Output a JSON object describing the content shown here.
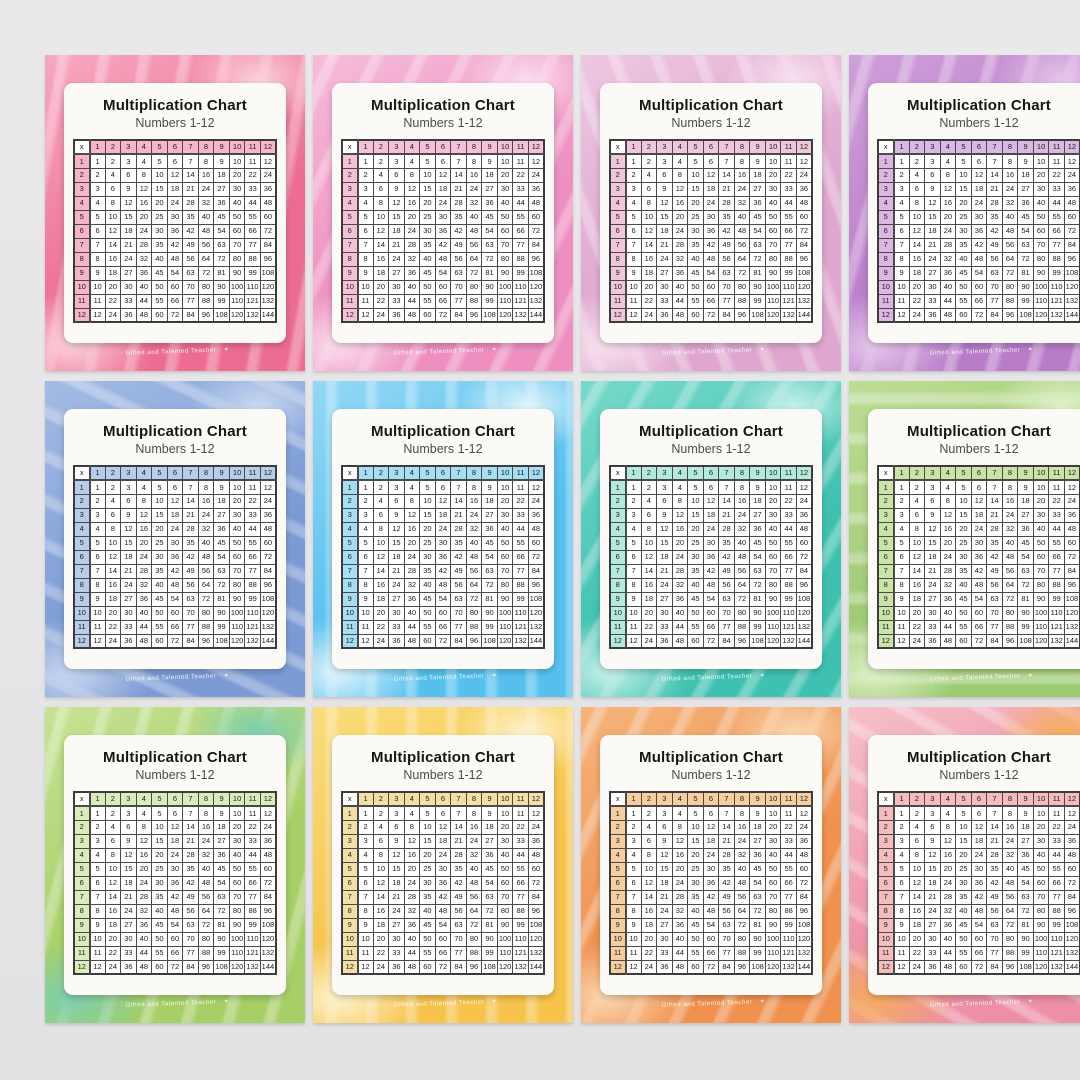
{
  "poster": {
    "title": "Multiplication Chart",
    "subtitle": "Numbers 1-12",
    "watermark": "· Gifted and Talented Teacher · ✶",
    "table": {
      "corner": "x",
      "col_headers": [
        "1",
        "2",
        "3",
        "4",
        "5",
        "6",
        "7",
        "8",
        "9",
        "10",
        "11",
        "12"
      ],
      "rows": [
        [
          1,
          1,
          2,
          3,
          4,
          5,
          6,
          7,
          8,
          9,
          10,
          11,
          12
        ],
        [
          2,
          2,
          4,
          6,
          8,
          10,
          12,
          14,
          16,
          18,
          20,
          22,
          24
        ],
        [
          3,
          3,
          6,
          9,
          12,
          15,
          18,
          21,
          24,
          27,
          30,
          33,
          36
        ],
        [
          4,
          4,
          8,
          12,
          16,
          20,
          24,
          28,
          32,
          36,
          40,
          44,
          48
        ],
        [
          5,
          5,
          10,
          15,
          20,
          25,
          30,
          35,
          40,
          45,
          50,
          55,
          60
        ],
        [
          6,
          6,
          12,
          18,
          24,
          30,
          36,
          42,
          48,
          54,
          60,
          66,
          72
        ],
        [
          7,
          7,
          14,
          21,
          28,
          35,
          42,
          49,
          56,
          63,
          70,
          77,
          84
        ],
        [
          8,
          8,
          16,
          24,
          32,
          40,
          48,
          56,
          64,
          72,
          80,
          88,
          96
        ],
        [
          9,
          9,
          18,
          27,
          36,
          45,
          54,
          63,
          72,
          81,
          90,
          99,
          108
        ],
        [
          10,
          10,
          20,
          30,
          40,
          50,
          60,
          70,
          80,
          90,
          100,
          110,
          120
        ],
        [
          11,
          11,
          22,
          33,
          44,
          55,
          66,
          77,
          88,
          99,
          110,
          121,
          132
        ],
        [
          12,
          12,
          24,
          36,
          48,
          60,
          72,
          84,
          96,
          108,
          120,
          132,
          144
        ]
      ]
    }
  },
  "cards": [
    {
      "name": "hot-pink",
      "base": "#ed6d92",
      "light": "#f7a8c1",
      "accent": "#fbd0da",
      "tint": "#f8b4ca"
    },
    {
      "name": "pink",
      "base": "#ee8fc0",
      "light": "#f6bcd9",
      "accent": "#fbdcec",
      "tint": "#f6c0d9"
    },
    {
      "name": "lilac-pink",
      "base": "#dfa7cf",
      "light": "#eec6e0",
      "accent": "#f7e0ee",
      "tint": "#f1c6dc"
    },
    {
      "name": "purple",
      "base": "#b97cc9",
      "light": "#cf9fd9",
      "accent": "#e5c6ea",
      "tint": "#dcb7e4"
    },
    {
      "name": "periwinkle-blue",
      "base": "#7c9bd5",
      "light": "#a3bce5",
      "accent": "#c8d8f0",
      "tint": "#b6cdeb"
    },
    {
      "name": "sky-blue",
      "base": "#55c0ee",
      "light": "#93d8f5",
      "accent": "#e0f4fc",
      "tint": "#a6def6"
    },
    {
      "name": "teal",
      "base": "#3fc1b1",
      "light": "#78dacb",
      "accent": "#c6f1e9",
      "tint": "#b4e9de"
    },
    {
      "name": "green",
      "base": "#9cca72",
      "light": "#bedd94",
      "accent": "#def0c6",
      "tint": "#c9e4a5"
    },
    {
      "name": "lime-green",
      "base": "#a6cf65",
      "light": "#c7e294",
      "accent": "#7ccfb0",
      "tint": "#daecb9"
    },
    {
      "name": "golden-yellow",
      "base": "#f7c34b",
      "light": "#fadd7c",
      "accent": "#fef3cd",
      "tint": "#f4dfa7"
    },
    {
      "name": "orange",
      "base": "#f0914e",
      "light": "#f5b47b",
      "accent": "#fad6ad",
      "tint": "#f8cea1"
    },
    {
      "name": "coral-sunset",
      "base": "#ed8fa5",
      "light": "#f6c0c8",
      "accent": "#f5ad5e",
      "tint": "#f6bcbc"
    }
  ],
  "colors": {
    "wall": "#e6e5e7",
    "paper": "#fbfaf7",
    "grid_border": "#3c3c3c",
    "title_text": "#161616",
    "subtitle_text": "#4c4c4c"
  }
}
